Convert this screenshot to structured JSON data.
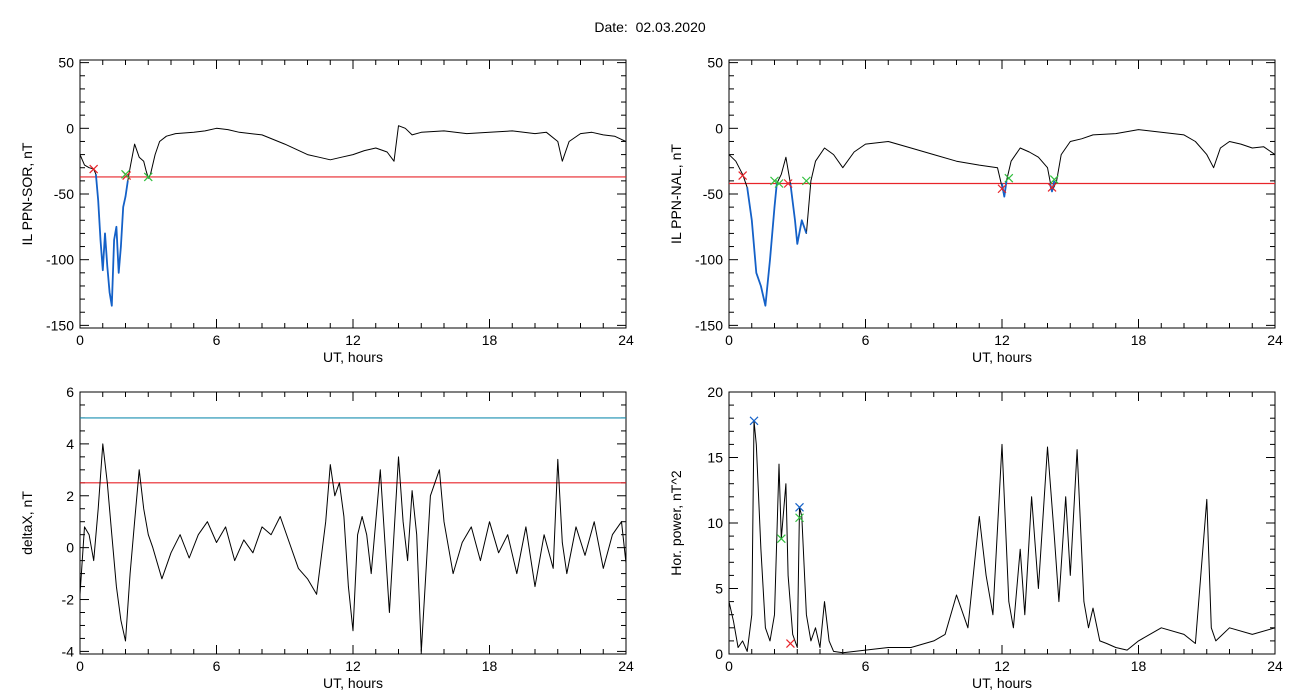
{
  "figure": {
    "title": "Date:  02.03.2020"
  },
  "chart_data": [
    {
      "id": "p1",
      "type": "line",
      "xlabel": "UT, hours",
      "ylabel": "IL PPN-SOR, nT",
      "xlim": [
        0,
        24
      ],
      "ylim": [
        -152,
        52
      ],
      "xticks": [
        0,
        6,
        12,
        18,
        24
      ],
      "yticks": [
        50,
        0,
        -50,
        -100,
        -150
      ],
      "hlines": [
        {
          "y": -37,
          "color": "#e8242a"
        }
      ],
      "series": [
        {
          "color": "#000000",
          "x": [
            0,
            0.2,
            0.4,
            0.6,
            0.7,
            0.8,
            0.9,
            1.0,
            1.1,
            1.2,
            1.3,
            1.4,
            1.5,
            1.6,
            1.7,
            1.8,
            1.9,
            2.0,
            2.1,
            2.2,
            2.4,
            2.6,
            2.8,
            2.9,
            3.0,
            3.1,
            3.3,
            3.5,
            3.8,
            4.2,
            5,
            5.5,
            6,
            6.5,
            7,
            8,
            9,
            10,
            10.5,
            11,
            11.5,
            12,
            12.5,
            13,
            13.5,
            13.8,
            14,
            14.3,
            14.6,
            15,
            16,
            17,
            18,
            19,
            20,
            20.5,
            21,
            21.2,
            21.5,
            22,
            22.5,
            23,
            23.5,
            24
          ],
          "y": [
            -20,
            -28,
            -30,
            -31,
            -35,
            -55,
            -85,
            -108,
            -80,
            -105,
            -125,
            -135,
            -85,
            -75,
            -110,
            -90,
            -60,
            -52,
            -40,
            -30,
            -12,
            -22,
            -25,
            -32,
            -38,
            -35,
            -20,
            -10,
            -6,
            -4,
            -3,
            -2,
            0,
            -1,
            -3,
            -5,
            -12,
            -20,
            -22,
            -24,
            -22,
            -20,
            -17,
            -15,
            -18,
            -25,
            2,
            0,
            -5,
            -3,
            -2,
            -4,
            -3,
            -2,
            -4,
            -3,
            -10,
            -25,
            -10,
            -4,
            -3,
            -5,
            -6,
            -10
          ]
        },
        {
          "color": "#1461c8",
          "x": [
            0.7,
            0.8,
            0.9,
            1.0,
            1.1,
            1.2,
            1.3,
            1.4,
            1.5,
            1.6,
            1.7,
            1.8,
            1.9,
            2.0,
            2.1
          ],
          "y": [
            -35,
            -55,
            -85,
            -108,
            -80,
            -105,
            -125,
            -135,
            -85,
            -75,
            -110,
            -90,
            -60,
            -52,
            -40
          ]
        }
      ],
      "markers": [
        {
          "x": 0.6,
          "y": -31,
          "color": "#e8242a"
        },
        {
          "x": 2.05,
          "y": -36,
          "color": "#e8242a"
        },
        {
          "x": 2.0,
          "y": -35,
          "color": "#2fbf3c"
        },
        {
          "x": 3.0,
          "y": -37,
          "color": "#2fbf3c"
        }
      ]
    },
    {
      "id": "p2",
      "type": "line",
      "xlabel": "UT, hours",
      "ylabel": "IL PPN-NAL, nT",
      "xlim": [
        0,
        24
      ],
      "ylim": [
        -152,
        52
      ],
      "xticks": [
        0,
        6,
        12,
        18,
        24
      ],
      "yticks": [
        50,
        0,
        -50,
        -100,
        -150
      ],
      "hlines": [
        {
          "y": -42,
          "color": "#e8242a"
        }
      ],
      "series": [
        {
          "color": "#000000",
          "x": [
            0,
            0.3,
            0.6,
            0.8,
            1.0,
            1.2,
            1.4,
            1.6,
            1.8,
            2.0,
            2.1,
            2.3,
            2.5,
            2.7,
            2.9,
            3.0,
            3.2,
            3.4,
            3.6,
            3.8,
            4.2,
            4.6,
            5,
            5.5,
            6,
            7,
            8,
            9,
            10,
            11,
            11.8,
            12.1,
            12.2,
            12.4,
            12.8,
            13.2,
            13.6,
            14.0,
            14.2,
            14.4,
            14.6,
            15,
            15.5,
            16,
            17,
            18,
            19,
            20,
            20.5,
            21,
            21.3,
            21.6,
            22,
            22.5,
            23,
            23.5,
            24
          ],
          "y": [
            -20,
            -25,
            -35,
            -45,
            -70,
            -110,
            -120,
            -135,
            -100,
            -60,
            -42,
            -35,
            -22,
            -42,
            -70,
            -88,
            -70,
            -80,
            -40,
            -25,
            -15,
            -20,
            -30,
            -18,
            -12,
            -10,
            -15,
            -20,
            -25,
            -28,
            -30,
            -52,
            -40,
            -25,
            -15,
            -18,
            -22,
            -30,
            -48,
            -40,
            -20,
            -10,
            -8,
            -5,
            -4,
            -1,
            -3,
            -5,
            -10,
            -20,
            -30,
            -15,
            -10,
            -12,
            -15,
            -14,
            -20
          ]
        },
        {
          "color": "#1461c8",
          "x": [
            0.8,
            1.0,
            1.2,
            1.4,
            1.6,
            1.8,
            2.0,
            2.1
          ],
          "y": [
            -45,
            -70,
            -110,
            -120,
            -135,
            -100,
            -60,
            -42
          ]
        },
        {
          "color": "#1461c8",
          "x": [
            2.7,
            2.9,
            3.0,
            3.2,
            3.4
          ],
          "y": [
            -42,
            -70,
            -88,
            -70,
            -80
          ]
        },
        {
          "color": "#1461c8",
          "x": [
            12.0,
            12.1,
            12.2
          ],
          "y": [
            -42,
            -52,
            -40
          ]
        },
        {
          "color": "#1461c8",
          "x": [
            14.1,
            14.2,
            14.3
          ],
          "y": [
            -42,
            -48,
            -40
          ]
        }
      ],
      "markers": [
        {
          "x": 0.6,
          "y": -36,
          "color": "#e8242a"
        },
        {
          "x": 2.0,
          "y": -40,
          "color": "#2fbf3c"
        },
        {
          "x": 2.2,
          "y": -42,
          "color": "#2fbf3c"
        },
        {
          "x": 2.6,
          "y": -42,
          "color": "#e8242a"
        },
        {
          "x": 3.4,
          "y": -40,
          "color": "#2fbf3c"
        },
        {
          "x": 12.0,
          "y": -46,
          "color": "#e8242a"
        },
        {
          "x": 12.3,
          "y": -38,
          "color": "#2fbf3c"
        },
        {
          "x": 14.2,
          "y": -45,
          "color": "#e8242a"
        },
        {
          "x": 14.3,
          "y": -39,
          "color": "#2fbf3c"
        }
      ]
    },
    {
      "id": "p3",
      "type": "line",
      "xlabel": "UT, hours",
      "ylabel": "deltaX, nT",
      "xlim": [
        0,
        24
      ],
      "ylim": [
        -4.1,
        6
      ],
      "xticks": [
        0,
        6,
        12,
        18,
        24
      ],
      "yticks": [
        6,
        4,
        2,
        0,
        -2,
        -4
      ],
      "hlines": [
        {
          "y": 5.0,
          "color": "#1a8fb0"
        },
        {
          "y": 2.5,
          "color": "#e8242a"
        }
      ],
      "series": [
        {
          "color": "#000000",
          "x": [
            0,
            0.2,
            0.4,
            0.6,
            0.8,
            1.0,
            1.2,
            1.4,
            1.6,
            1.8,
            2.0,
            2.2,
            2.4,
            2.6,
            2.8,
            3.0,
            3.2,
            3.6,
            4.0,
            4.4,
            4.8,
            5.2,
            5.6,
            6.0,
            6.4,
            6.8,
            7.2,
            7.6,
            8.0,
            8.4,
            8.8,
            9.2,
            9.6,
            10.0,
            10.4,
            10.8,
            11.0,
            11.2,
            11.4,
            11.6,
            11.8,
            12.0,
            12.2,
            12.4,
            12.6,
            12.8,
            13.2,
            13.6,
            14.0,
            14.2,
            14.4,
            14.6,
            14.8,
            15.0,
            15.4,
            15.8,
            16.0,
            16.4,
            16.8,
            17.2,
            17.6,
            18.0,
            18.4,
            18.8,
            19.2,
            19.6,
            20.0,
            20.4,
            20.8,
            21.0,
            21.2,
            21.4,
            21.8,
            22.2,
            22.6,
            23.0,
            23.4,
            23.8,
            24.0
          ],
          "y": [
            -1.8,
            0.8,
            0.5,
            -0.5,
            1.5,
            4.0,
            2.5,
            0.5,
            -1.5,
            -2.8,
            -3.6,
            -1.0,
            1.0,
            3.0,
            1.5,
            0.5,
            0,
            -1.2,
            -0.2,
            0.5,
            -0.4,
            0.5,
            1.0,
            0.2,
            0.8,
            -0.5,
            0.3,
            -0.2,
            0.8,
            0.5,
            1.2,
            0.2,
            -0.8,
            -1.2,
            -1.8,
            1.0,
            3.2,
            2.0,
            2.5,
            1.2,
            -1.5,
            -3.2,
            0.5,
            1.2,
            0.5,
            -1.0,
            3.0,
            -2.5,
            3.5,
            1.0,
            -0.5,
            2.2,
            0.5,
            -4.0,
            2.0,
            3.0,
            1.0,
            -1.0,
            0.2,
            0.8,
            -0.5,
            1.0,
            -0.2,
            0.5,
            -1.0,
            0.8,
            -1.5,
            0.5,
            -0.8,
            3.4,
            0.2,
            -1.0,
            0.8,
            -0.3,
            1.0,
            -0.8,
            0.5,
            1.0,
            -0.6
          ]
        }
      ],
      "markers": []
    },
    {
      "id": "p4",
      "type": "line",
      "xlabel": "UT, hours",
      "ylabel": "Hor. power, nT^2",
      "xlim": [
        0,
        24
      ],
      "ylim": [
        0,
        20
      ],
      "xticks": [
        0,
        6,
        12,
        18,
        24
      ],
      "yticks": [
        20,
        15,
        10,
        5,
        0
      ],
      "hlines": [],
      "series": [
        {
          "color": "#000000",
          "x": [
            0,
            0.2,
            0.4,
            0.6,
            0.8,
            1.0,
            1.1,
            1.2,
            1.4,
            1.6,
            1.8,
            2.0,
            2.2,
            2.3,
            2.5,
            2.6,
            2.8,
            3.0,
            3.1,
            3.2,
            3.4,
            3.6,
            3.8,
            4.0,
            4.2,
            4.4,
            4.6,
            5.0,
            6,
            7,
            8,
            9,
            9.5,
            10.0,
            10.5,
            11.0,
            11.3,
            11.6,
            12.0,
            12.3,
            12.5,
            12.8,
            13.0,
            13.3,
            13.6,
            14.0,
            14.3,
            14.5,
            14.8,
            15.0,
            15.3,
            15.6,
            15.8,
            16.0,
            16.3,
            16.6,
            17.0,
            17.5,
            18,
            19,
            20,
            20.5,
            21.0,
            21.2,
            21.4,
            22,
            23,
            24
          ],
          "y": [
            4.0,
            2.5,
            0.5,
            1.0,
            0.2,
            3.0,
            17.8,
            16.0,
            8.0,
            2.0,
            1.0,
            3.0,
            14.5,
            8.8,
            13.0,
            6.0,
            1.5,
            0.5,
            11.2,
            10.5,
            3.0,
            1.0,
            2.0,
            0.5,
            4.0,
            1.0,
            0.2,
            0.1,
            0.3,
            0.5,
            0.5,
            1.0,
            1.5,
            4.5,
            2.0,
            10.5,
            6.0,
            3.0,
            16.0,
            4.0,
            2.0,
            8.0,
            3.0,
            12.0,
            5.0,
            15.8,
            9.0,
            4.0,
            12.0,
            6.0,
            15.6,
            4.0,
            2.0,
            3.5,
            1.0,
            0.8,
            0.5,
            0.3,
            1.0,
            2.0,
            1.5,
            0.8,
            11.8,
            2.0,
            1.0,
            2.0,
            1.5,
            2.0
          ]
        }
      ],
      "markers": [
        {
          "x": 1.1,
          "y": 17.8,
          "color": "#1461c8"
        },
        {
          "x": 2.3,
          "y": 8.8,
          "color": "#2fbf3c"
        },
        {
          "x": 2.7,
          "y": 0.8,
          "color": "#e8242a"
        },
        {
          "x": 3.1,
          "y": 11.2,
          "color": "#1461c8"
        },
        {
          "x": 3.1,
          "y": 10.4,
          "color": "#2fbf3c"
        }
      ]
    }
  ]
}
